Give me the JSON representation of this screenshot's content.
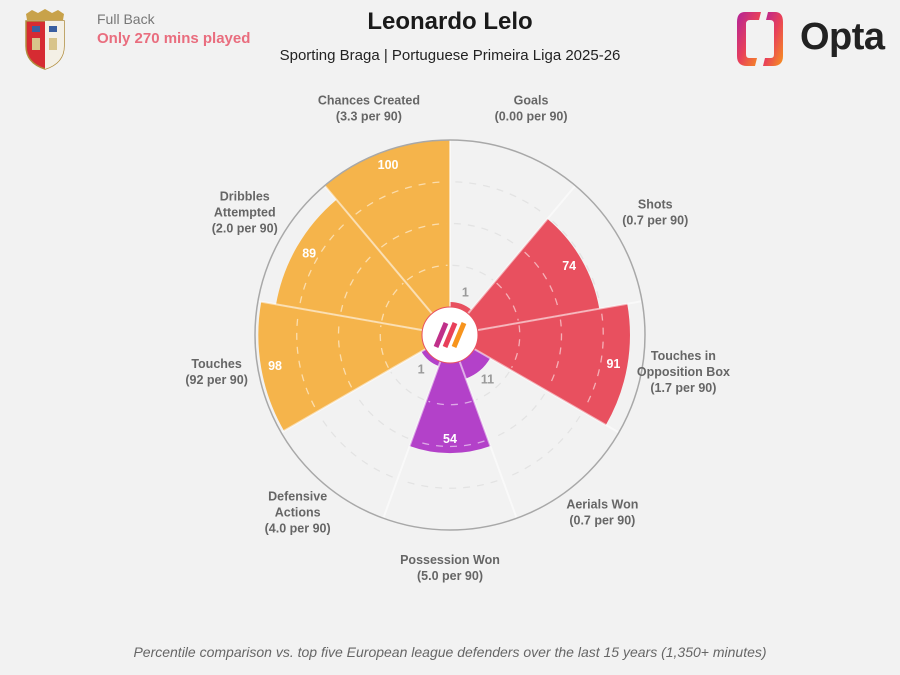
{
  "header": {
    "position": "Full Back",
    "minutes_note": "Only 270 mins played",
    "player_name": "Leonardo Lelo",
    "subtitle": "Sporting Braga | Portuguese Primeira Liga 2025-26",
    "brand": "Opta",
    "club_crest": "sporting-braga-crest"
  },
  "footnote": "Percentile comparison vs. top five European league defenders over the last 15 years (1,350+ minutes)",
  "colors": {
    "attacking": "#f5b44b",
    "shooting": "#e8505f",
    "defending": "#b341c9",
    "background": "#f2f2f2"
  },
  "chart_data": {
    "type": "pie",
    "subtype": "polar-percentile-pizza",
    "title": "Leonardo Lelo",
    "range": [
      0,
      100
    ],
    "categories": [
      "Goals",
      "Shots",
      "Touches in Opposition Box",
      "Aerials Won",
      "Possession Won",
      "Defensive Actions",
      "Touches",
      "Dribbles Attempted",
      "Chances Created"
    ],
    "series": [
      {
        "name": "Goals",
        "label": "Goals",
        "per90": "(0.00 per 90)",
        "value": 1,
        "group": "shooting"
      },
      {
        "name": "Shots",
        "label": "Shots",
        "per90": "(0.7 per 90)",
        "value": 74,
        "group": "shooting"
      },
      {
        "name": "Touches in Opposition Box",
        "label": "Touches in|Opposition Box",
        "per90": "(1.7 per 90)",
        "value": 91,
        "group": "shooting"
      },
      {
        "name": "Aerials Won",
        "label": "Aerials Won",
        "per90": "(0.7 per 90)",
        "value": 11,
        "group": "defending"
      },
      {
        "name": "Possession Won",
        "label": "Possession Won",
        "per90": "(5.0 per 90)",
        "value": 54,
        "group": "defending"
      },
      {
        "name": "Defensive Actions",
        "label": "Defensive|Actions",
        "per90": "(4.0 per 90)",
        "value": 1,
        "group": "defending"
      },
      {
        "name": "Touches",
        "label": "Touches",
        "per90": "(92 per 90)",
        "value": 98,
        "group": "attacking"
      },
      {
        "name": "Dribbles Attempted",
        "label": "Dribbles|Attempted",
        "per90": "(2.0 per 90)",
        "value": 89,
        "group": "attacking"
      },
      {
        "name": "Chances Created",
        "label": "Chances Created",
        "per90": "(3.3 per 90)",
        "value": 100,
        "group": "attacking"
      }
    ],
    "gridlines": [
      25,
      50,
      75
    ],
    "legend": "none"
  }
}
